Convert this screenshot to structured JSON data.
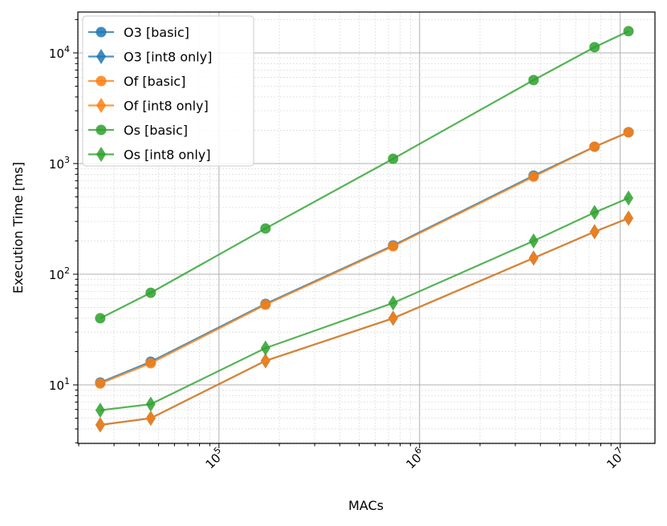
{
  "chart_data": {
    "type": "line",
    "xlabel": "MACs",
    "ylabel": "Execution Time [ms]",
    "xscale": "log",
    "yscale": "log",
    "xlim": [
      19800,
      14900000
    ],
    "ylim": [
      2.96,
      23400
    ],
    "grid": "major and minor",
    "legend_position": "top-left",
    "x_ticks": [
      {
        "value": 100000,
        "base": "10",
        "exp": "5"
      },
      {
        "value": 1000000,
        "base": "10",
        "exp": "6"
      },
      {
        "value": 10000000,
        "base": "10",
        "exp": "7"
      }
    ],
    "y_ticks": [
      {
        "value": 10,
        "base": "10",
        "exp": "1"
      },
      {
        "value": 100,
        "base": "10",
        "exp": "2"
      },
      {
        "value": 1000,
        "base": "10",
        "exp": "3"
      },
      {
        "value": 10000,
        "base": "10",
        "exp": "4"
      }
    ],
    "x": [
      25600,
      45700,
      170600,
      738000,
      3700000,
      7450000,
      11000000
    ],
    "series": [
      {
        "name": "O3 [basic]",
        "color": "#1f77b4",
        "marker": "circle",
        "values": [
          10.5,
          16.2,
          54,
          182,
          778,
          1420,
          1920
        ]
      },
      {
        "name": "O3 [int8 only]",
        "color": "#1f77b4",
        "marker": "diamond",
        "values": [
          4.35,
          5.0,
          16.5,
          40,
          140,
          242,
          321
        ]
      },
      {
        "name": "Of [basic]",
        "color": "#ff7f0e",
        "marker": "circle",
        "values": [
          10.3,
          15.7,
          53,
          179,
          760,
          1420,
          1920
        ]
      },
      {
        "name": "Of [int8 only]",
        "color": "#ff7f0e",
        "marker": "diamond",
        "values": [
          4.35,
          5.0,
          16.5,
          40,
          140,
          242,
          321
        ]
      },
      {
        "name": "Os [basic]",
        "color": "#2ca02c",
        "marker": "circle",
        "values": [
          40,
          68,
          259,
          1105,
          5680,
          11250,
          15700
        ]
      },
      {
        "name": "Os [int8 only]",
        "color": "#2ca02c",
        "marker": "diamond",
        "values": [
          5.9,
          6.7,
          21.5,
          55,
          200,
          361,
          488
        ]
      }
    ]
  }
}
